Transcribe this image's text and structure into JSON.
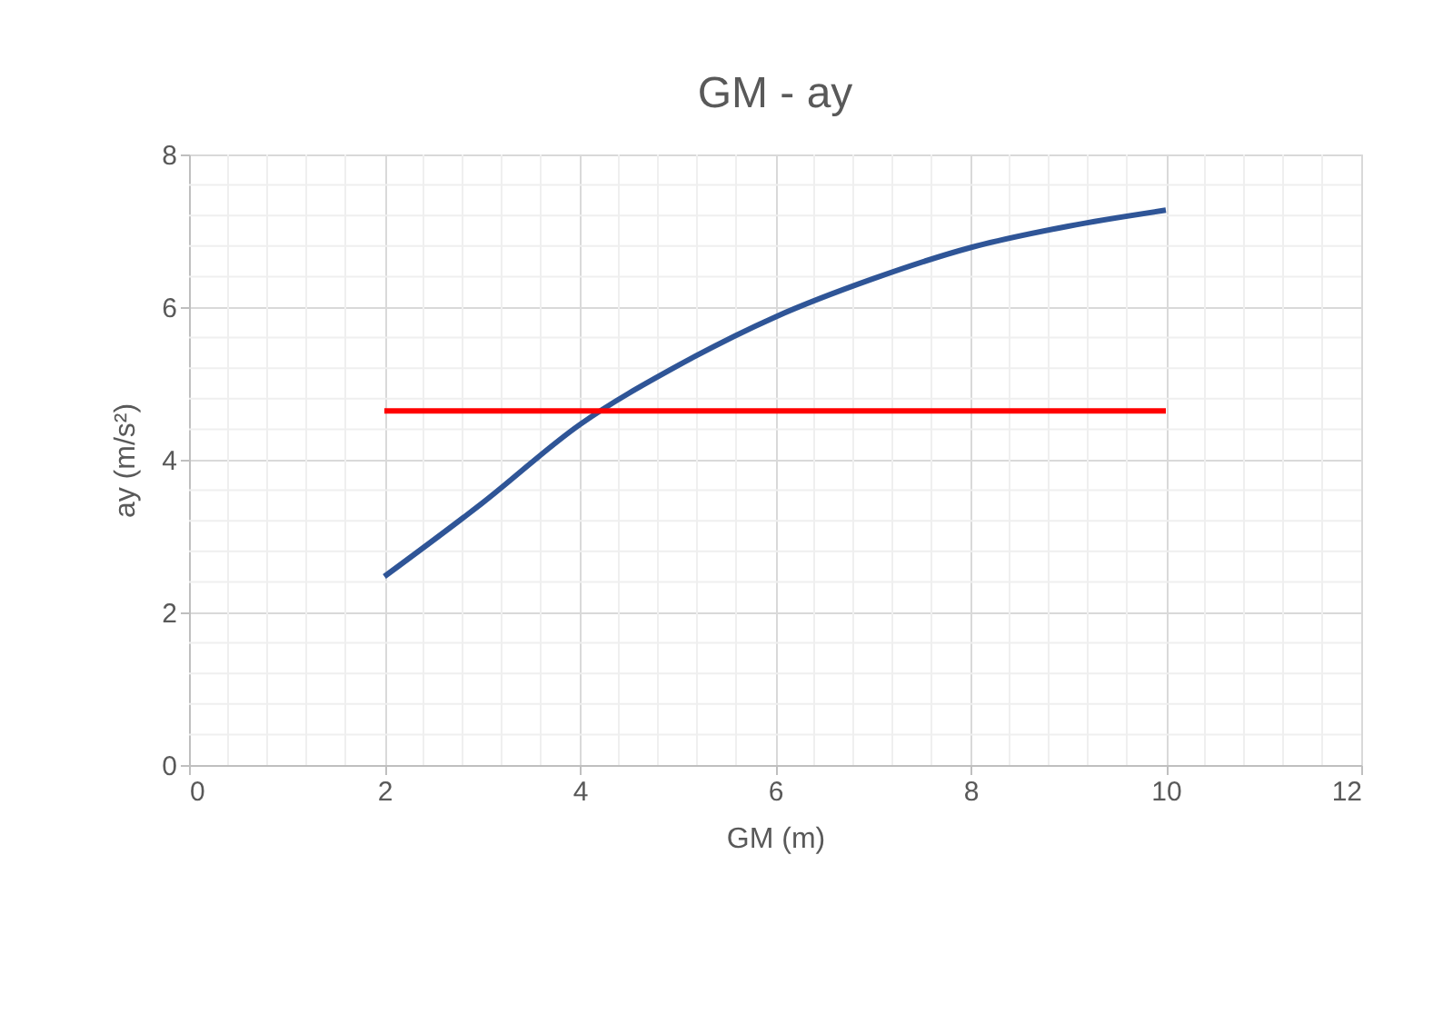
{
  "chart_data": {
    "type": "line",
    "title": "GM - ay",
    "xlabel": "GM (m)",
    "ylabel": "ay (m/s²)",
    "series": [
      {
        "color": "#2f5597",
        "x": [
          2,
          3,
          4,
          5,
          6,
          7,
          8,
          9,
          10
        ],
        "values": [
          2.47,
          3.43,
          4.46,
          5.23,
          5.87,
          6.37,
          6.78,
          7.06,
          7.27
        ]
      },
      {
        "color": "#ff0000",
        "x": [
          2,
          10
        ],
        "values": [
          4.64,
          4.64
        ]
      }
    ],
    "xlim": [
      0,
      12
    ],
    "xticks": [
      0,
      2,
      4,
      6,
      8,
      10,
      12
    ],
    "ylim": [
      0,
      8
    ],
    "yticks": [
      0,
      2,
      4,
      6,
      8
    ],
    "grid": true,
    "marker": "none",
    "line_style": "solid"
  }
}
